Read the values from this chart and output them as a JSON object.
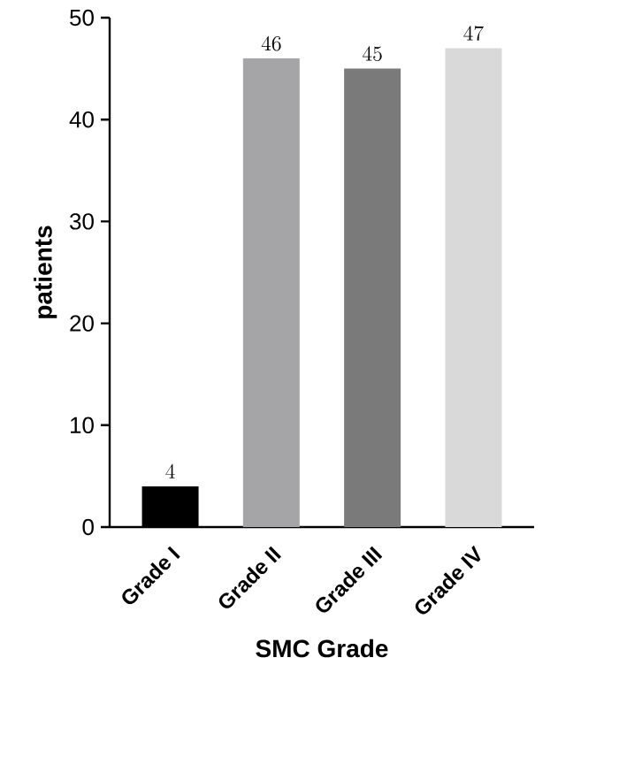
{
  "chart_data": {
    "type": "bar",
    "xlabel": "SMC Grade",
    "ylabel": "patients",
    "categories": [
      "Grade I",
      "Grade II",
      "Grade III",
      "Grade IV"
    ],
    "values": [
      4,
      46,
      45,
      47
    ],
    "colors": [
      "#000000",
      "#a5a5a8",
      "#7a7a7a",
      "#d9d9d9"
    ],
    "ylim": [
      0,
      50
    ],
    "yticks": [
      0,
      10,
      20,
      30,
      40,
      50
    ],
    "data_labels": true
  }
}
